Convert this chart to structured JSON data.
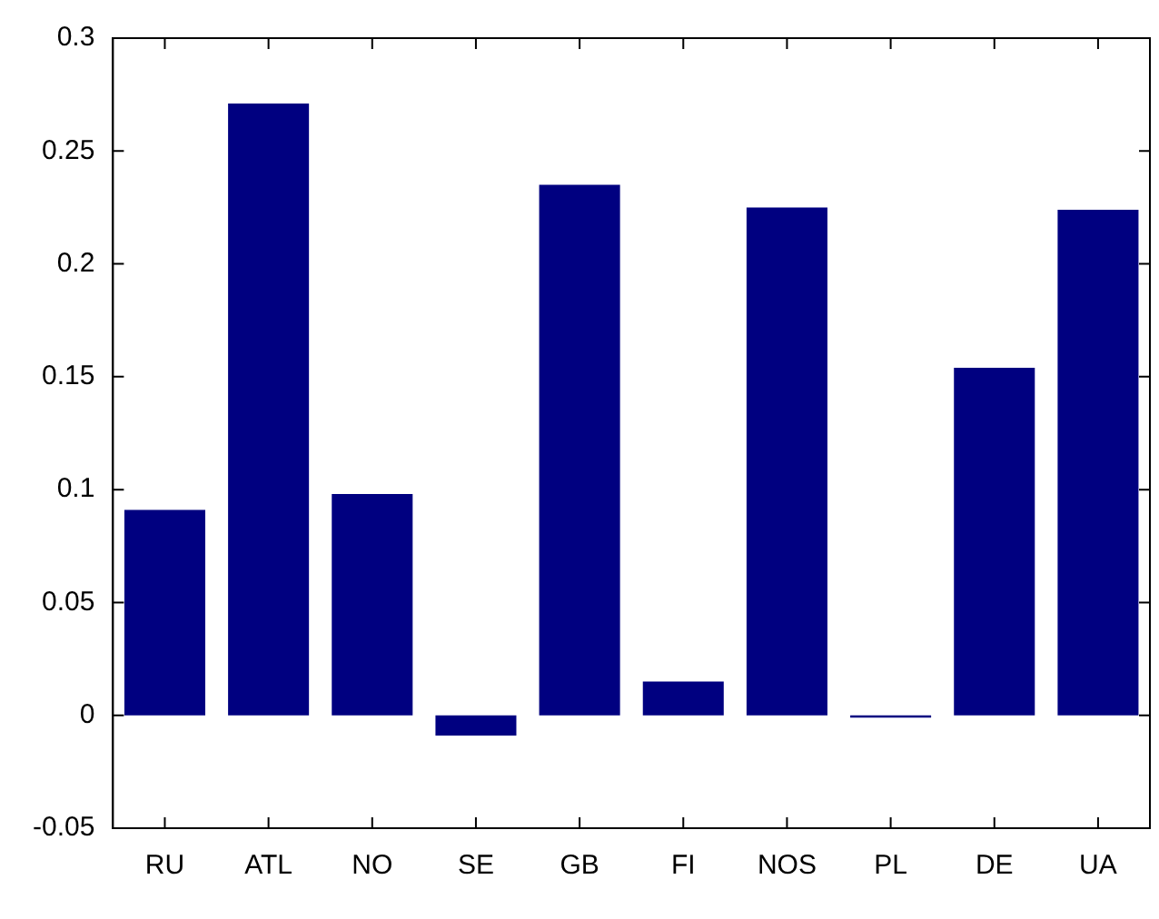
{
  "chart_data": {
    "type": "bar",
    "categories": [
      "RU",
      "ATL",
      "NO",
      "SE",
      "GB",
      "FI",
      "NOS",
      "PL",
      "DE",
      "UA"
    ],
    "values": [
      0.091,
      0.271,
      0.098,
      -0.009,
      0.235,
      0.015,
      0.225,
      -0.001,
      0.154,
      0.224
    ],
    "color": "#000080",
    "ylim": [
      -0.05,
      0.3
    ],
    "yticks": [
      -0.05,
      0,
      0.05,
      0.1,
      0.15,
      0.2,
      0.25,
      0.3
    ],
    "grid": false,
    "legend": false
  }
}
